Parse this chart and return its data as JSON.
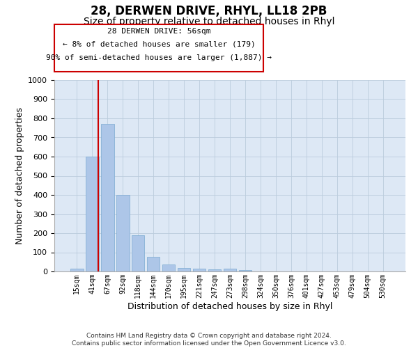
{
  "title": "28, DERWEN DRIVE, RHYL, LL18 2PB",
  "subtitle": "Size of property relative to detached houses in Rhyl",
  "xlabel": "Distribution of detached houses by size in Rhyl",
  "ylabel": "Number of detached properties",
  "bar_labels": [
    "15sqm",
    "41sqm",
    "67sqm",
    "92sqm",
    "118sqm",
    "144sqm",
    "170sqm",
    "195sqm",
    "221sqm",
    "247sqm",
    "273sqm",
    "298sqm",
    "324sqm",
    "350sqm",
    "376sqm",
    "401sqm",
    "427sqm",
    "453sqm",
    "479sqm",
    "504sqm",
    "530sqm"
  ],
  "bar_values": [
    15,
    600,
    770,
    400,
    190,
    77,
    38,
    20,
    15,
    10,
    13,
    8,
    0,
    0,
    0,
    0,
    0,
    0,
    0,
    0,
    0
  ],
  "bar_color": "#adc6e8",
  "bar_edge_color": "#7aaad0",
  "bar_edge_width": 0.5,
  "grid_color": "#bbccdd",
  "background_color": "#dde8f5",
  "ylim": [
    0,
    1000
  ],
  "yticks": [
    0,
    100,
    200,
    300,
    400,
    500,
    600,
    700,
    800,
    900,
    1000
  ],
  "vline_color": "#cc0000",
  "annotation_line1": "28 DERWEN DRIVE: 56sqm",
  "annotation_line2": "← 8% of detached houses are smaller (179)",
  "annotation_line3": "90% of semi-detached houses are larger (1,887) →",
  "annotation_fontsize": 8,
  "footer_text": "Contains HM Land Registry data © Crown copyright and database right 2024.\nContains public sector information licensed under the Open Government Licence v3.0.",
  "title_fontsize": 12,
  "subtitle_fontsize": 10,
  "xlabel_fontsize": 9,
  "ylabel_fontsize": 9
}
